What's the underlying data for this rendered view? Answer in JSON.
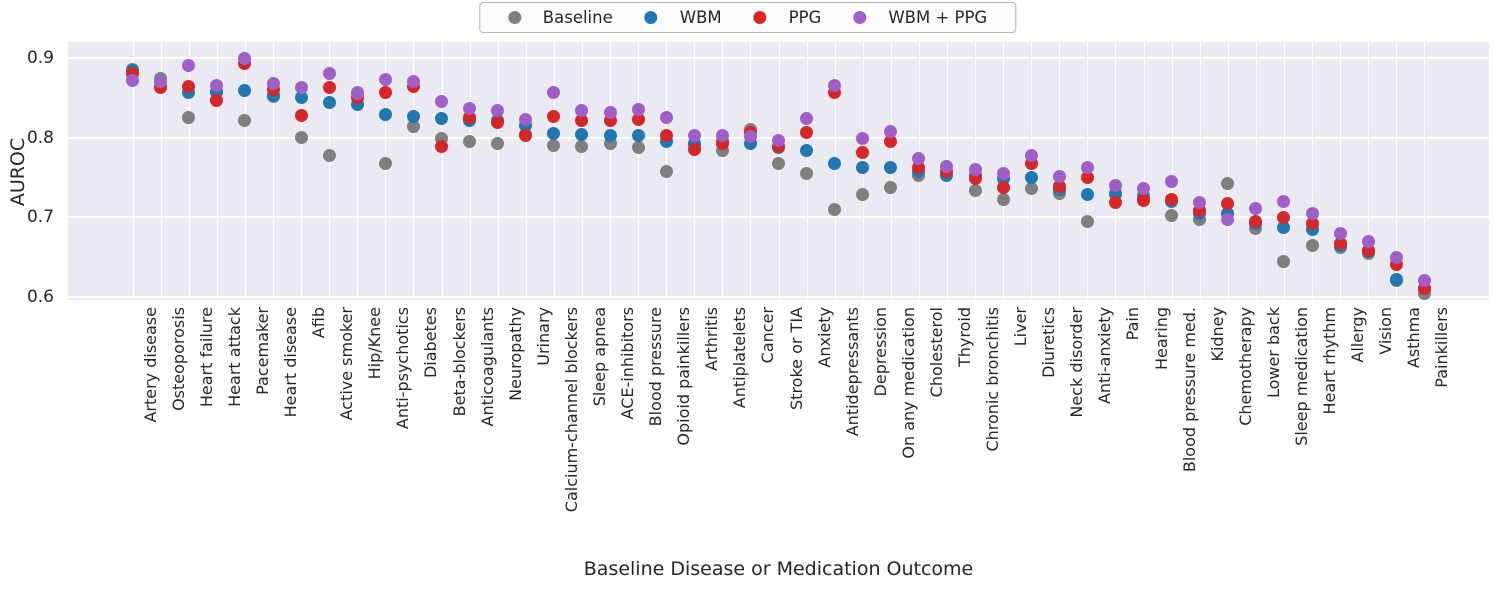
{
  "chart_data": {
    "type": "scatter",
    "title": "",
    "xlabel": "Baseline Disease or Medication Outcome",
    "ylabel": "AUROC",
    "xlim": [
      -2.3,
      48.3
    ],
    "ylim": [
      0.596,
      0.92
    ],
    "yticks": [
      0.9,
      0.8,
      0.7,
      0.6
    ],
    "ytick_labels": [
      "0.9",
      "0.8",
      "0.7",
      "0.6"
    ],
    "grid": true,
    "legend_position": "top-center",
    "marker_size_px": 13,
    "categories": [
      "Artery disease",
      "Osteoporosis",
      "Heart failure",
      "Heart attack",
      "Pacemaker",
      "Heart disease",
      "Afib",
      "Active smoker",
      "Hip/Knee",
      "Anti-psychotics",
      "Diabetes",
      "Beta-blockers",
      "Anticoagulants",
      "Neuropathy",
      "Urinary",
      "Calcium-channel blockers",
      "Sleep apnea",
      "ACE-inhibitors",
      "Blood pressure",
      "Opioid painkillers",
      "Arthritis",
      "Antiplatelets",
      "Cancer",
      "Stroke or TIA",
      "Anxiety",
      "Antidepressants",
      "Depression",
      "On any medication",
      "Cholesterol",
      "Thyroid",
      "Chronic bronchitis",
      "Liver",
      "Diuretics",
      "Neck disorder",
      "Anti-anxiety",
      "Pain",
      "Hearing",
      "Blood pressure med.",
      "Kidney",
      "Chemotherapy",
      "Lower back",
      "Sleep medication",
      "Heart rhythm",
      "Allergy",
      "Vision",
      "Asthma",
      "Painkillers"
    ],
    "series": [
      {
        "name": "Baseline",
        "color": "#7f7f7f",
        "values": [
          0.886,
          0.874,
          0.825,
          0.856,
          0.822,
          0.852,
          0.8,
          0.778,
          0.857,
          0.767,
          0.814,
          0.799,
          0.795,
          0.793,
          0.804,
          0.79,
          0.789,
          0.792,
          0.788,
          0.757,
          0.79,
          0.784,
          0.81,
          0.768,
          0.755,
          0.71,
          0.729,
          0.737,
          0.752,
          0.754,
          0.734,
          0.722,
          0.736,
          0.73,
          0.694,
          0.728,
          0.727,
          0.702,
          0.697,
          0.742,
          0.686,
          0.644,
          0.665,
          0.662,
          0.655,
          0.62,
          0.604
        ]
      },
      {
        "name": "WBM",
        "color": "#1f77b4",
        "values": [
          0.884,
          0.864,
          0.857,
          0.858,
          0.859,
          0.853,
          0.85,
          0.844,
          0.842,
          0.829,
          0.826,
          0.824,
          0.822,
          0.821,
          0.815,
          0.805,
          0.804,
          0.802,
          0.802,
          0.795,
          0.793,
          0.795,
          0.793,
          0.787,
          0.784,
          0.768,
          0.763,
          0.763,
          0.758,
          0.752,
          0.752,
          0.749,
          0.75,
          0.735,
          0.729,
          0.73,
          0.724,
          0.72,
          0.705,
          0.705,
          0.692,
          0.687,
          0.684,
          0.665,
          0.657,
          0.622,
          0.611
        ]
      },
      {
        "name": "PPG",
        "color": "#d62728",
        "values": [
          0.881,
          0.863,
          0.864,
          0.847,
          0.893,
          0.86,
          0.828,
          0.863,
          0.85,
          0.857,
          0.864,
          0.789,
          0.825,
          0.819,
          0.803,
          0.826,
          0.822,
          0.821,
          0.823,
          0.803,
          0.785,
          0.792,
          0.806,
          0.789,
          0.806,
          0.857,
          0.781,
          0.795,
          0.762,
          0.757,
          0.748,
          0.737,
          0.768,
          0.738,
          0.75,
          0.719,
          0.721,
          0.722,
          0.708,
          0.717,
          0.695,
          0.7,
          0.692,
          0.667,
          0.658,
          0.641,
          0.61
        ]
      },
      {
        "name": "WBM + PPG",
        "color": "#a05fc8",
        "values": [
          0.872,
          0.87,
          0.89,
          0.866,
          0.899,
          0.868,
          0.863,
          0.881,
          0.855,
          0.873,
          0.871,
          0.845,
          0.837,
          0.834,
          0.823,
          0.857,
          0.834,
          0.831,
          0.835,
          0.825,
          0.802,
          0.802,
          0.801,
          0.796,
          0.824,
          0.866,
          0.799,
          0.808,
          0.774,
          0.764,
          0.76,
          0.755,
          0.777,
          0.751,
          0.762,
          0.74,
          0.736,
          0.745,
          0.718,
          0.697,
          0.711,
          0.72,
          0.705,
          0.68,
          0.669,
          0.649,
          0.621
        ]
      }
    ]
  },
  "styles": {
    "figure_background": "#ffffff",
    "plot_background": "#eaeaf2",
    "grid_color": "#ffffff",
    "text_color": "#262626",
    "legend_background": "#fdfdfe",
    "legend_border": "#b5b5b5"
  }
}
